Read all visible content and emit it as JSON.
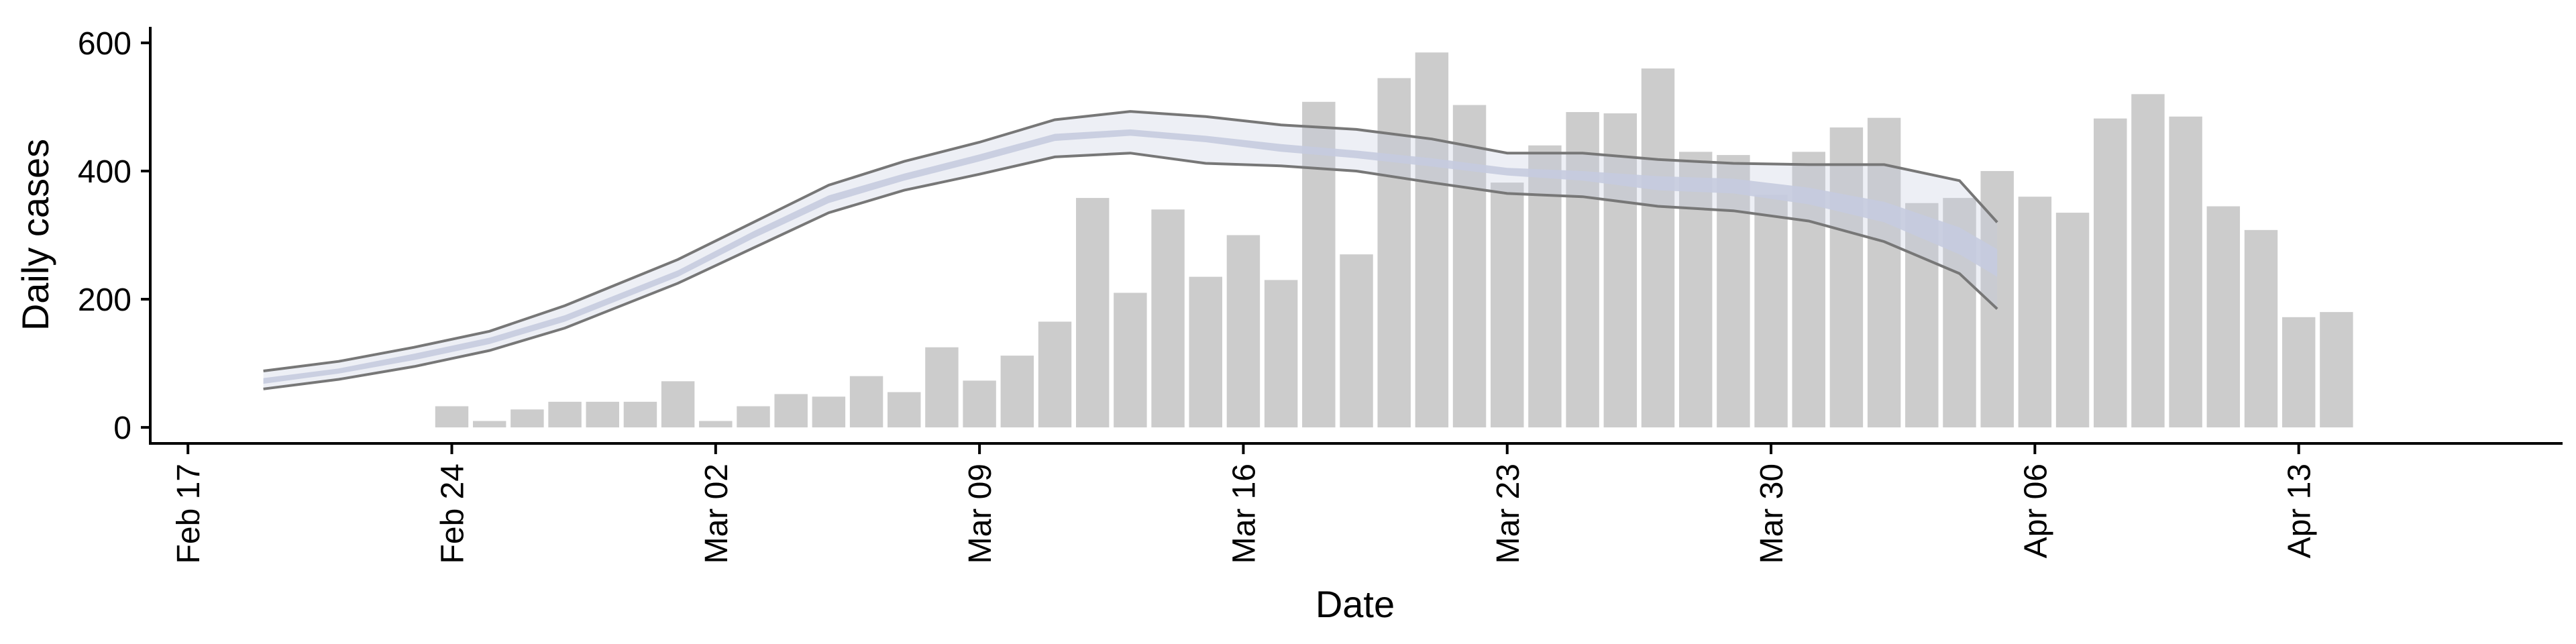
{
  "chart_data": {
    "type": "bar",
    "title": "",
    "xlabel": "Date",
    "ylabel": "Daily cases",
    "x_start": "2020-02-17",
    "xlim": [
      "2020-02-16",
      "2020-04-20"
    ],
    "ylim": [
      -25,
      625
    ],
    "yticks": [
      0,
      200,
      400,
      600
    ],
    "xticks": [
      "Feb 17",
      "Feb 24",
      "Mar 02",
      "Mar 09",
      "Mar 16",
      "Mar 23",
      "Mar 30",
      "Apr 06",
      "Apr 13"
    ],
    "bar_color": "#cccccc",
    "band_color": "#c5cbdf",
    "line_color": "#777777",
    "bars": {
      "dates": [
        "2020-02-24",
        "2020-02-25",
        "2020-02-26",
        "2020-02-27",
        "2020-02-28",
        "2020-02-29",
        "2020-03-01",
        "2020-03-02",
        "2020-03-03",
        "2020-03-04",
        "2020-03-05",
        "2020-03-06",
        "2020-03-07",
        "2020-03-08",
        "2020-03-09",
        "2020-03-10",
        "2020-03-11",
        "2020-03-12",
        "2020-03-13",
        "2020-03-14",
        "2020-03-15",
        "2020-03-16",
        "2020-03-17",
        "2020-03-18",
        "2020-03-19",
        "2020-03-20",
        "2020-03-21",
        "2020-03-22",
        "2020-03-23",
        "2020-03-24",
        "2020-03-25",
        "2020-03-26",
        "2020-03-27",
        "2020-03-28",
        "2020-03-29",
        "2020-03-30",
        "2020-03-31",
        "2020-04-01",
        "2020-04-02",
        "2020-04-03",
        "2020-04-04",
        "2020-04-05",
        "2020-04-06",
        "2020-04-07",
        "2020-04-08",
        "2020-04-09",
        "2020-04-10",
        "2020-04-11",
        "2020-04-12",
        "2020-04-13",
        "2020-04-14"
      ],
      "values": [
        33,
        10,
        28,
        40,
        40,
        40,
        72,
        10,
        33,
        52,
        48,
        80,
        55,
        125,
        73,
        112,
        165,
        358,
        210,
        340,
        235,
        300,
        230,
        508,
        270,
        545,
        585,
        503,
        382,
        440,
        492,
        490,
        560,
        430,
        425,
        363,
        430,
        468,
        483,
        350,
        358,
        400,
        360,
        335,
        482,
        520,
        485,
        345,
        308,
        172,
        180
      ]
    },
    "series": [
      {
        "dates": [
          "2020-02-19",
          "2020-02-21",
          "2020-02-23",
          "2020-02-25",
          "2020-02-27",
          "2020-03-01",
          "2020-03-03",
          "2020-03-05",
          "2020-03-07",
          "2020-03-09",
          "2020-03-11",
          "2020-03-13",
          "2020-03-15",
          "2020-03-17",
          "2020-03-19",
          "2020-03-21",
          "2020-03-23",
          "2020-03-25",
          "2020-03-27",
          "2020-03-29",
          "2020-03-31",
          "2020-04-02",
          "2020-04-04",
          "2020-04-05"
        ],
        "median": [
          72,
          88,
          110,
          135,
          170,
          240,
          300,
          355,
          390,
          420,
          452,
          460,
          450,
          435,
          425,
          412,
          398,
          392,
          380,
          375,
          360,
          335,
          290,
          255
        ],
        "inner_low": [
          68,
          84,
          105,
          130,
          165,
          235,
          295,
          350,
          385,
          415,
          447,
          455,
          445,
          430,
          420,
          407,
          393,
          385,
          370,
          365,
          348,
          320,
          270,
          235
        ],
        "inner_high": [
          77,
          92,
          115,
          140,
          175,
          245,
          306,
          362,
          396,
          426,
          458,
          465,
          455,
          442,
          432,
          420,
          405,
          400,
          392,
          388,
          374,
          352,
          312,
          278
        ],
        "lower": [
          60,
          75,
          95,
          120,
          155,
          225,
          280,
          335,
          370,
          395,
          422,
          428,
          412,
          408,
          400,
          382,
          365,
          360,
          345,
          338,
          322,
          290,
          240,
          185
        ],
        "upper": [
          88,
          103,
          125,
          150,
          190,
          262,
          320,
          378,
          415,
          445,
          480,
          493,
          485,
          472,
          465,
          450,
          428,
          428,
          418,
          412,
          410,
          410,
          385,
          320
        ]
      }
    ]
  }
}
